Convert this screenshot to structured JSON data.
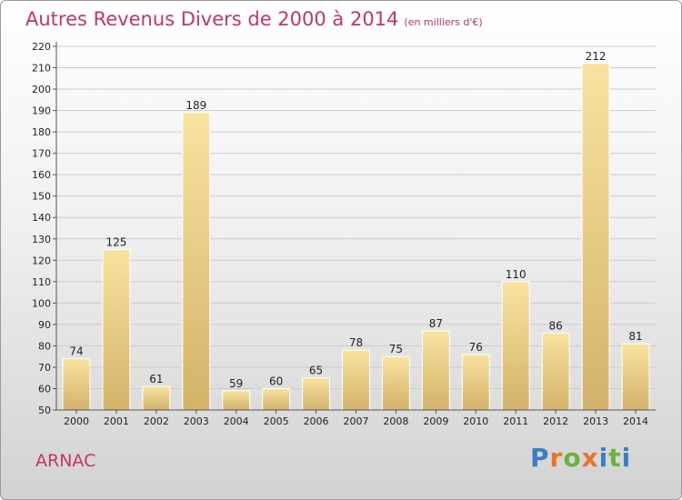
{
  "title": "Autres Revenus Divers de 2000 à 2014",
  "subtitle": "(en milliers d'€)",
  "commune": "ARNAC",
  "logo": {
    "letters": [
      "P",
      "r",
      "o",
      "x",
      "i",
      "t",
      "i"
    ],
    "colors": [
      "#3a7fc4",
      "#e8742a",
      "#6bb33a",
      "#e8742a",
      "#3a7fc4",
      "#6bb33a",
      "#3a7fc4"
    ]
  },
  "colors": {
    "bar_light": "#f8e3a0",
    "bar_dark": "#d4b26a",
    "grid": "#cccccc",
    "title": "#c8336a"
  },
  "chart_data": {
    "type": "bar",
    "title": "Autres Revenus Divers de 2000 à 2014",
    "subtitle": "(en milliers d'€)",
    "categories": [
      "2000",
      "2001",
      "2002",
      "2003",
      "2004",
      "2005",
      "2006",
      "2007",
      "2008",
      "2009",
      "2010",
      "2011",
      "2012",
      "2013",
      "2014"
    ],
    "values": [
      74,
      125,
      61,
      189,
      59,
      60,
      65,
      78,
      75,
      87,
      76,
      110,
      86,
      212,
      81
    ],
    "ylim": [
      50,
      220
    ],
    "yticks": [
      50,
      60,
      70,
      80,
      90,
      100,
      110,
      120,
      130,
      140,
      150,
      160,
      170,
      180,
      190,
      200,
      210,
      220
    ],
    "grid": true,
    "xlabel": "",
    "ylabel": ""
  }
}
